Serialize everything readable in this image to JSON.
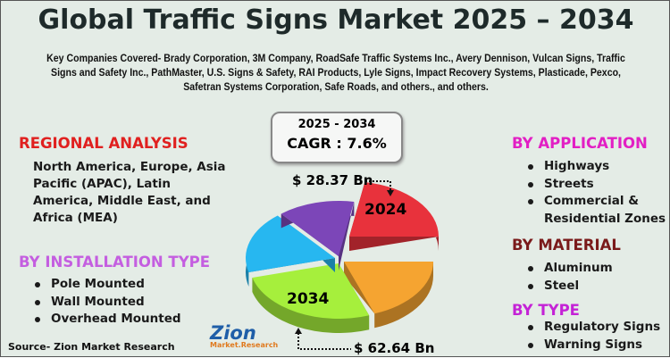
{
  "title": "Global Traffic Signs Market 2025 – 2034",
  "companies": "Key Companies Covered- Brady Corporation, 3M Company, RoadSafe Traffic Systems Inc., Avery Dennison, Vulcan Signs, Traffic Signs and Safety Inc., PathMaster, U.S. Signs & Safety, RAI Products, Lyle Signs, Impact Recovery Systems, Plasticade, Pexco, Safetran Systems Corporation, Safe Roads, and others., and others.",
  "cagr": {
    "period": "2025 - 2034",
    "value": "CAGR : 7.6%"
  },
  "market": {
    "value_2024": "$ 28.37 Bn",
    "label_2024": "2024",
    "value_2034": "$ 62.64 Bn",
    "label_2034": "2034"
  },
  "regional": {
    "heading": "REGIONAL ANALYSIS",
    "text": "North America, Europe, Asia Pacific (APAC), Latin America, Middle East, and Africa (MEA)",
    "color": "#e0201f"
  },
  "installation": {
    "heading": "BY INSTALLATION TYPE",
    "items": [
      "Pole Mounted",
      "Wall Mounted",
      "Overhead Mounted"
    ],
    "color": "#c45ee0"
  },
  "application": {
    "heading": "BY APPLICATION",
    "items": [
      "Highways",
      "Streets",
      "Commercial & Residential Zones"
    ],
    "color": "#e21fc4"
  },
  "material": {
    "heading": "BY MATERIAL",
    "items": [
      "Aluminum",
      "Steel"
    ],
    "color": "#7a1a1a"
  },
  "type": {
    "heading": "BY TYPE",
    "items": [
      "Regulatory Signs",
      "Warning Signs"
    ],
    "color": "#c422d6"
  },
  "pie_colors": [
    "#e8323c",
    "#f5a431",
    "#a6ef3c",
    "#27b7f0",
    "#7c46b8"
  ],
  "logo": {
    "name": "Zion",
    "sub": "Market.Research"
  },
  "source": "Source- Zion Market Research"
}
